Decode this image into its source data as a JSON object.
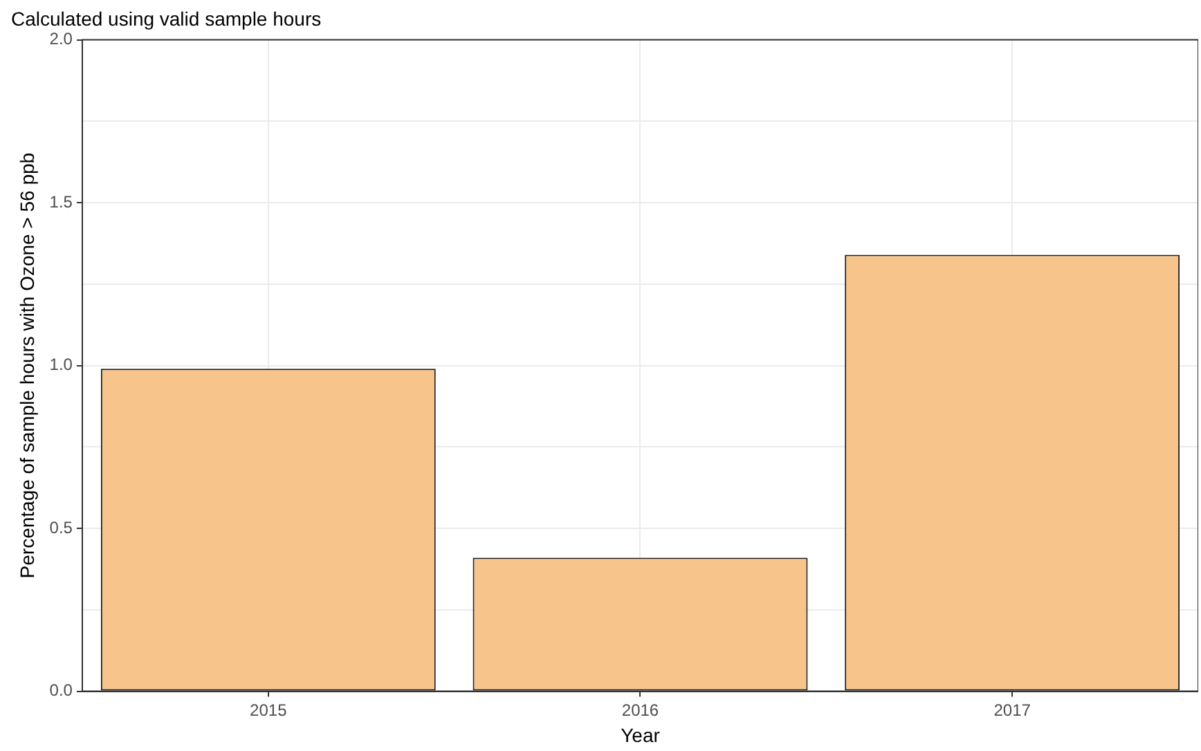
{
  "chart_data": {
    "type": "bar",
    "title": "Calculated using valid sample hours",
    "xlabel": "Year",
    "ylabel": "Percentage of sample hours with Ozone > 56 ppb",
    "categories": [
      "2015",
      "2016",
      "2017"
    ],
    "series": [
      {
        "color": "#f7c58c",
        "values": [
          0.99,
          0.41,
          1.34
        ]
      }
    ],
    "ylim": [
      0,
      2
    ],
    "yticks": [
      {
        "value": 0,
        "label": "0.0"
      },
      {
        "value": 0.25,
        "label": null
      },
      {
        "value": 0.5,
        "label": "0.5"
      },
      {
        "value": 0.75,
        "label": null
      },
      {
        "value": 1,
        "label": "1.0"
      },
      {
        "value": 1.25,
        "label": null
      },
      {
        "value": 1.5,
        "label": "1.5"
      },
      {
        "value": 1.75,
        "label": null
      },
      {
        "value": 2,
        "label": "2.0"
      }
    ],
    "grid": true,
    "legend": false
  }
}
